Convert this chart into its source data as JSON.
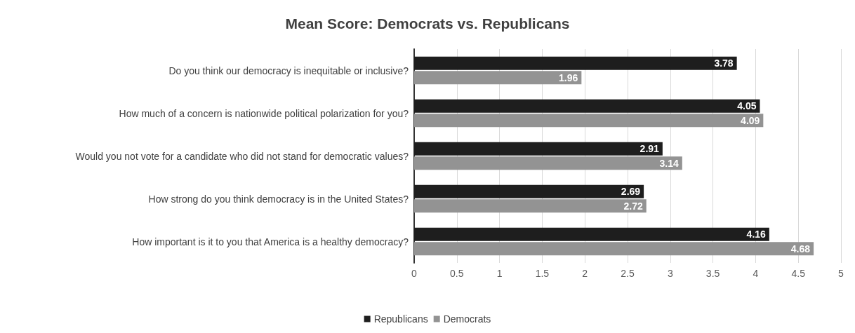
{
  "chart_data": {
    "type": "bar",
    "orientation": "horizontal",
    "title": "Mean Score: Democrats vs. Republicans",
    "categories": [
      "Do you think our democracy is inequitable or inclusive?",
      "How much of a concern is nationwide political polarization for you?",
      "Would you not vote for a candidate who did not stand for democratic values?",
      "How strong do you think democracy is in the United States?",
      "How important is it to you that America is a healthy democracy?"
    ],
    "series": [
      {
        "name": "Republicans",
        "color": "#1e1e1e",
        "values": [
          3.78,
          4.05,
          2.91,
          2.69,
          4.16
        ]
      },
      {
        "name": "Democrats",
        "color": "#939393",
        "values": [
          1.96,
          4.09,
          3.14,
          2.72,
          4.68
        ]
      }
    ],
    "xlim": [
      0,
      5
    ],
    "xticks": [
      0,
      0.5,
      1,
      1.5,
      2,
      2.5,
      3,
      3.5,
      4,
      4.5,
      5
    ],
    "grid": "x",
    "legend": "bottom",
    "data_labels": true
  }
}
